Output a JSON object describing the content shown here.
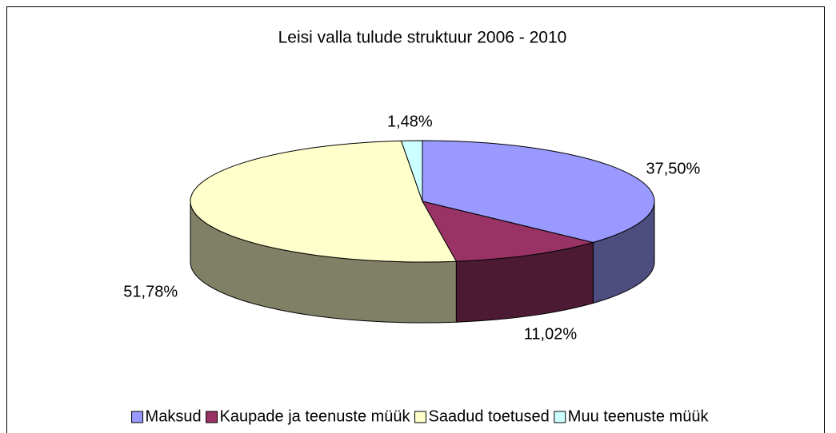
{
  "chart_data": {
    "type": "pie",
    "title": "Leisi valla tulude struktuur 2006 - 2010",
    "categories": [
      "Maksud",
      "Kaupade ja teenuste müük",
      "Saadud toetused",
      "Muu teenuste müük"
    ],
    "values": [
      37.5,
      11.02,
      51.78,
      1.48
    ],
    "value_labels": [
      "37,50%",
      "11,02%",
      "51,78%",
      "1,48%"
    ],
    "colors": [
      "#9999ff",
      "#993366",
      "#ffffcc",
      "#ccffff"
    ],
    "legend": "bottom"
  }
}
